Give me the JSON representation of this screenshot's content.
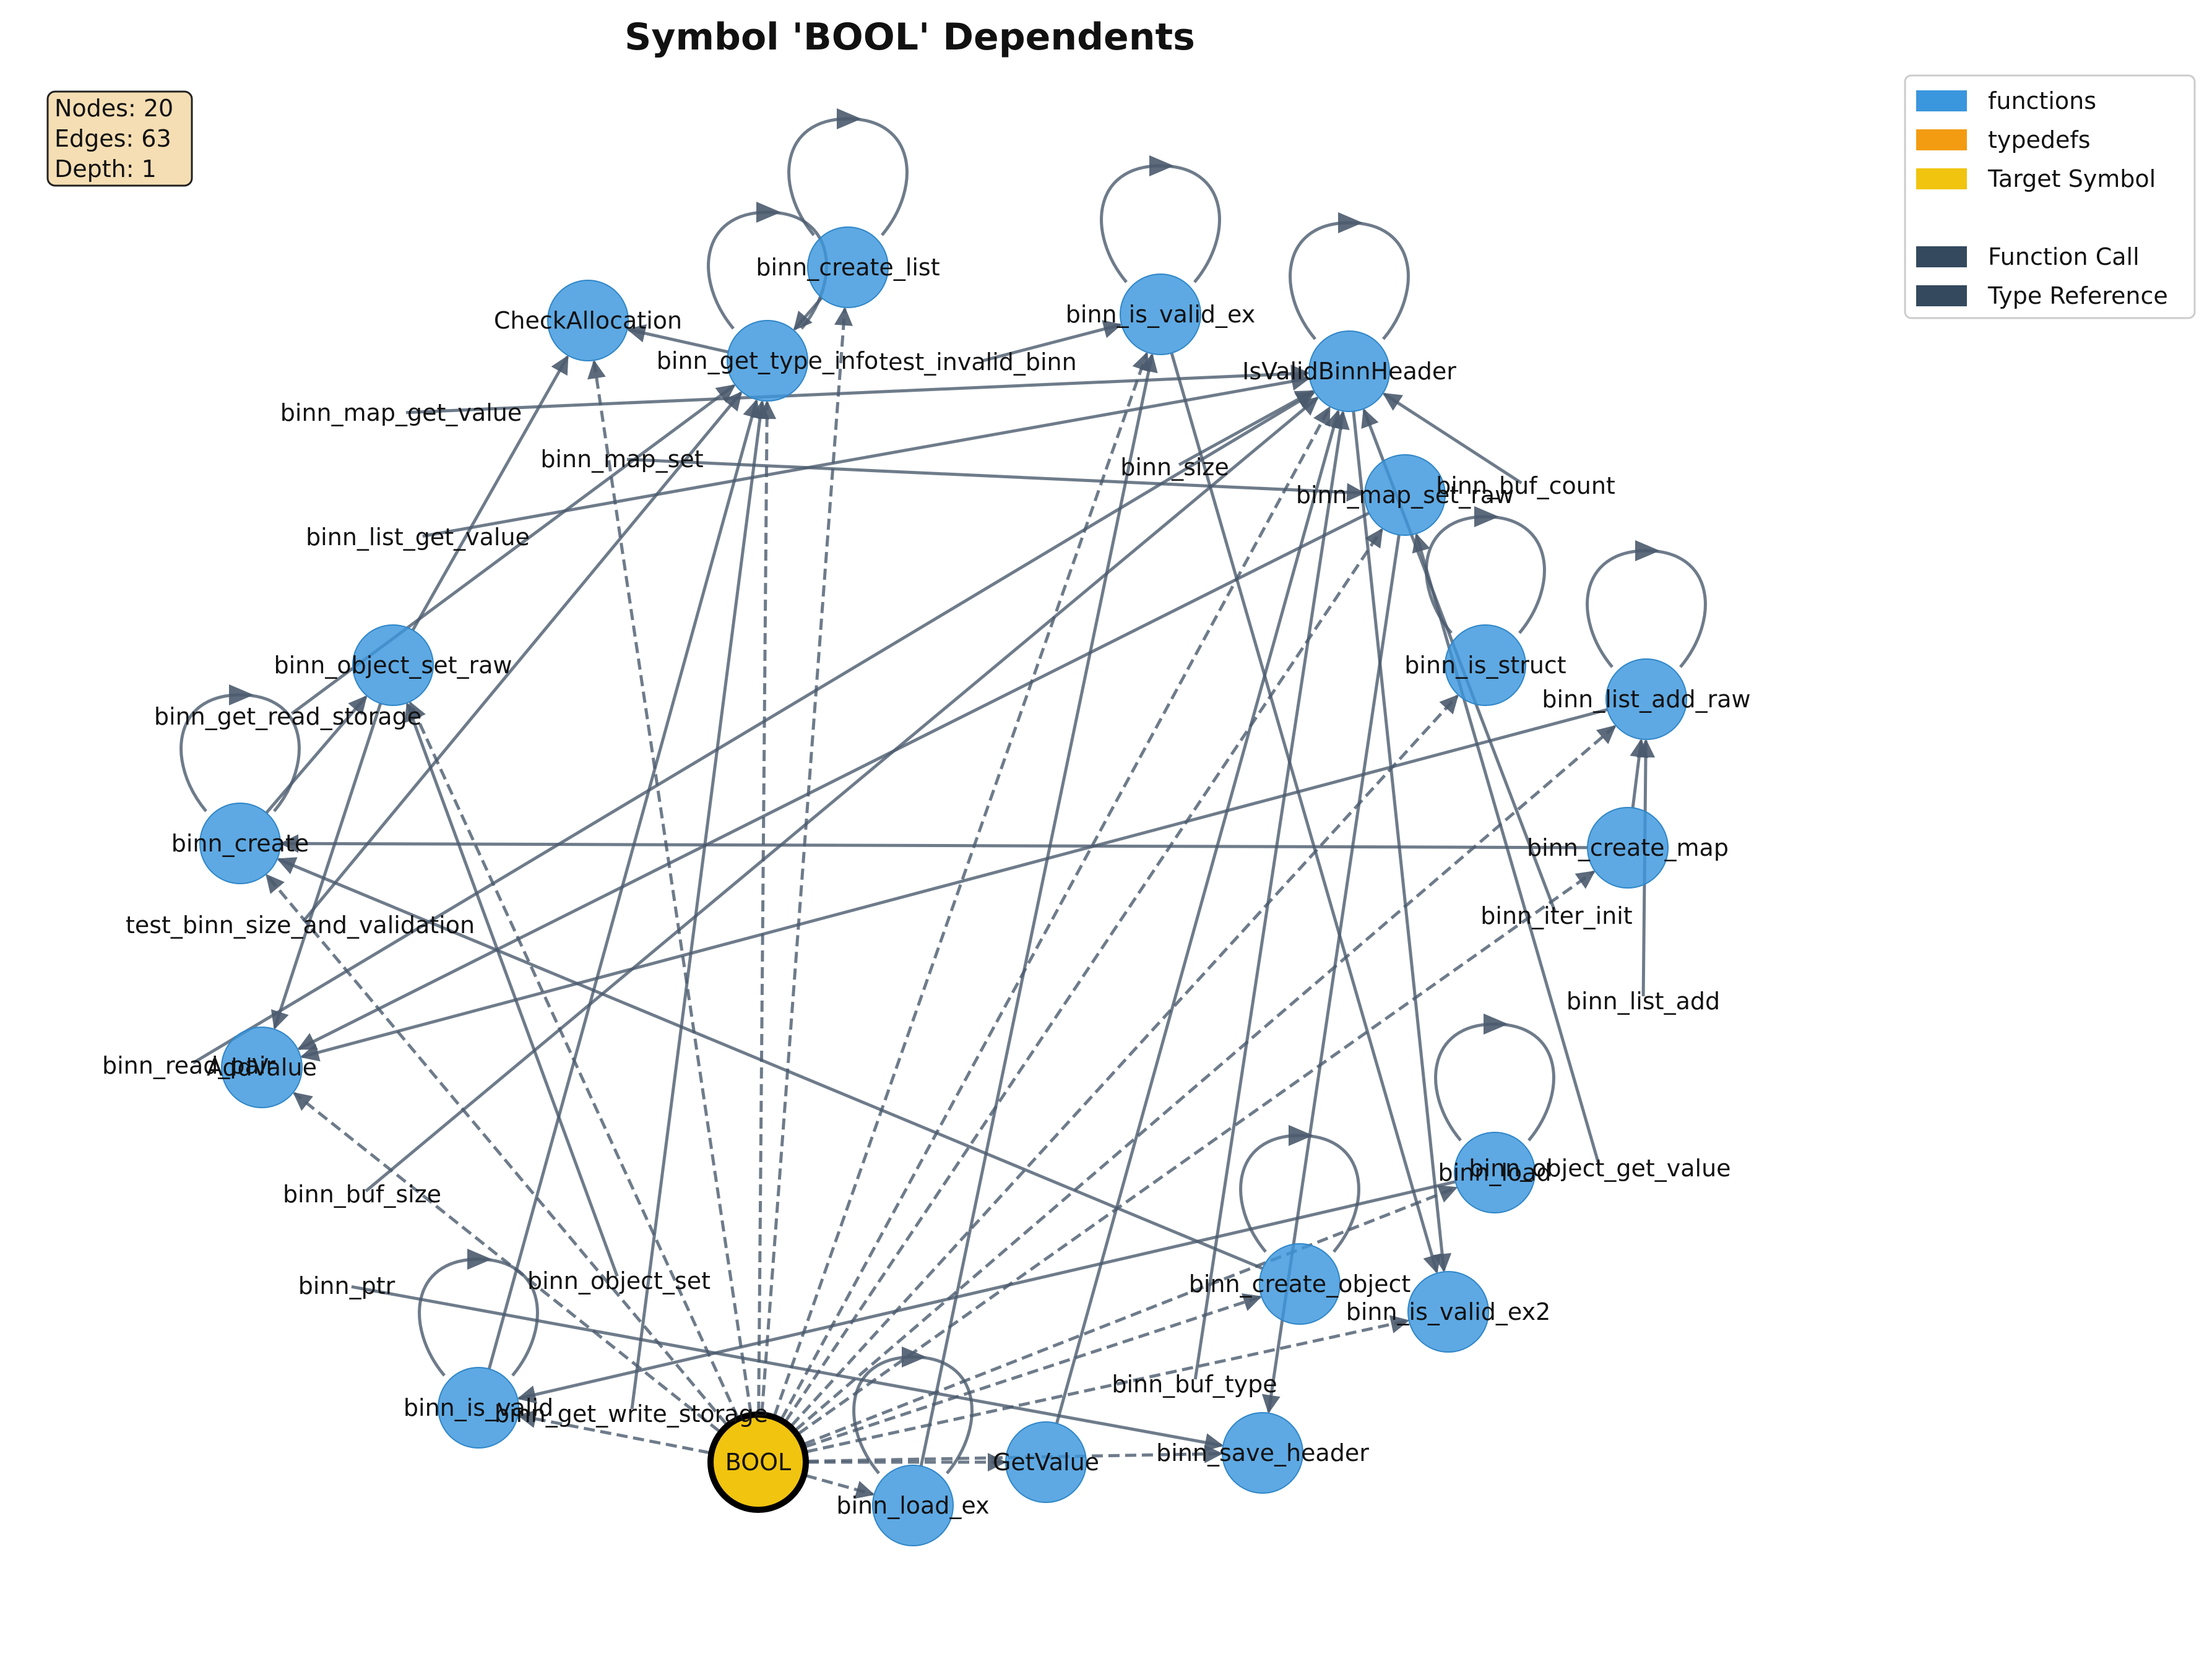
{
  "title": "Symbol 'BOOL' Dependents",
  "info": {
    "nodes": "Nodes: 20",
    "edges": "Edges: 63",
    "depth": "Depth: 1"
  },
  "legend": [
    {
      "label": "functions",
      "color": "#3a96dd"
    },
    {
      "label": "typedefs",
      "color": "#f39c12"
    },
    {
      "label": "Target Symbol",
      "color": "#f1c40f"
    },
    {
      "label": "Function Call",
      "color": "#34495e"
    },
    {
      "label": "Type Reference",
      "color": "#34495e"
    }
  ],
  "colors": {
    "function_node": "#3a96dd",
    "target_node": "#f1c40f",
    "target_border": "#000000",
    "edge": "#34495e"
  },
  "nodes": [
    {
      "id": "BOOL",
      "type": "target"
    },
    {
      "id": "CheckAllocation",
      "type": "function"
    },
    {
      "id": "binn_create_list",
      "type": "function"
    },
    {
      "id": "binn_get_type_info",
      "type": "function"
    },
    {
      "id": "binn_is_valid_ex",
      "type": "function"
    },
    {
      "id": "IsValidBinnHeader",
      "type": "function"
    },
    {
      "id": "binn_map_set_raw",
      "type": "function"
    },
    {
      "id": "binn_is_struct",
      "type": "function"
    },
    {
      "id": "binn_list_add_raw",
      "type": "function"
    },
    {
      "id": "binn_create_map",
      "type": "function"
    },
    {
      "id": "binn_object_set_raw",
      "type": "function"
    },
    {
      "id": "binn_create",
      "type": "function"
    },
    {
      "id": "AddValue",
      "type": "function"
    },
    {
      "id": "binn_load",
      "type": "function"
    },
    {
      "id": "binn_create_object",
      "type": "function"
    },
    {
      "id": "binn_is_valid_ex2",
      "type": "function"
    },
    {
      "id": "binn_is_valid",
      "type": "function"
    },
    {
      "id": "binn_save_header",
      "type": "function"
    },
    {
      "id": "GetValue",
      "type": "function"
    },
    {
      "id": "binn_load_ex",
      "type": "function"
    }
  ],
  "free_labels": [
    "test_invalid_binn",
    "binn_map_get_value",
    "binn_map_set",
    "binn_size",
    "binn_buf_count",
    "binn_list_get_value",
    "binn_get_read_storage",
    "test_binn_size_and_validation",
    "binn_iter_init",
    "binn_list_add",
    "binn_read_pair",
    "binn_object_get_value",
    "binn_buf_size",
    "binn_object_set",
    "binn_ptr",
    "binn_buf_type",
    "binn_get_write_storage"
  ]
}
